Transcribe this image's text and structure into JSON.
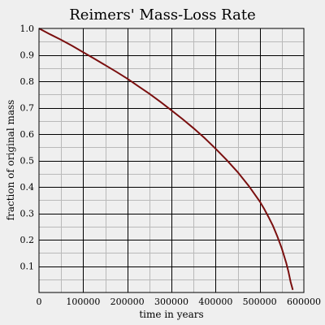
{
  "chart_data": {
    "type": "line",
    "title": "Reimers' Mass-Loss Rate",
    "xlabel": "time in years",
    "ylabel": "fraction of original mass",
    "xlim": [
      0,
      600000
    ],
    "ylim": [
      0,
      1.0
    ],
    "x_ticks": [
      0,
      100000,
      200000,
      300000,
      400000,
      500000,
      600000
    ],
    "x_tick_labels": [
      "0",
      "100000",
      "200000",
      "300000",
      "400000",
      "500000",
      "600000"
    ],
    "y_ticks": [
      0.1,
      0.2,
      0.3,
      0.4,
      0.5,
      0.6,
      0.7,
      0.8,
      0.9,
      1.0
    ],
    "y_tick_labels": [
      "0.1",
      "0.2",
      "0.3",
      "0.4",
      "0.5",
      "0.6",
      "0.7",
      "0.8",
      "0.9",
      "1.0"
    ],
    "grid": true,
    "legend": "none",
    "line_color": "#7a0f0f",
    "series": [
      {
        "x": [
          0,
          25000,
          50000,
          75000,
          100000,
          125000,
          150000,
          175000,
          200000,
          225000,
          250000,
          275000,
          300000,
          325000,
          350000,
          375000,
          400000,
          425000,
          450000,
          475000,
          500000,
          510000,
          520000,
          530000,
          540000,
          550000,
          560000,
          565000,
          570000,
          575000
        ],
        "y": [
          1.0,
          0.978,
          0.957,
          0.934,
          0.91,
          0.886,
          0.861,
          0.836,
          0.81,
          0.781,
          0.753,
          0.722,
          0.69,
          0.657,
          0.622,
          0.585,
          0.545,
          0.502,
          0.456,
          0.404,
          0.345,
          0.317,
          0.286,
          0.252,
          0.212,
          0.167,
          0.112,
          0.079,
          0.04,
          0.01
        ]
      }
    ]
  }
}
